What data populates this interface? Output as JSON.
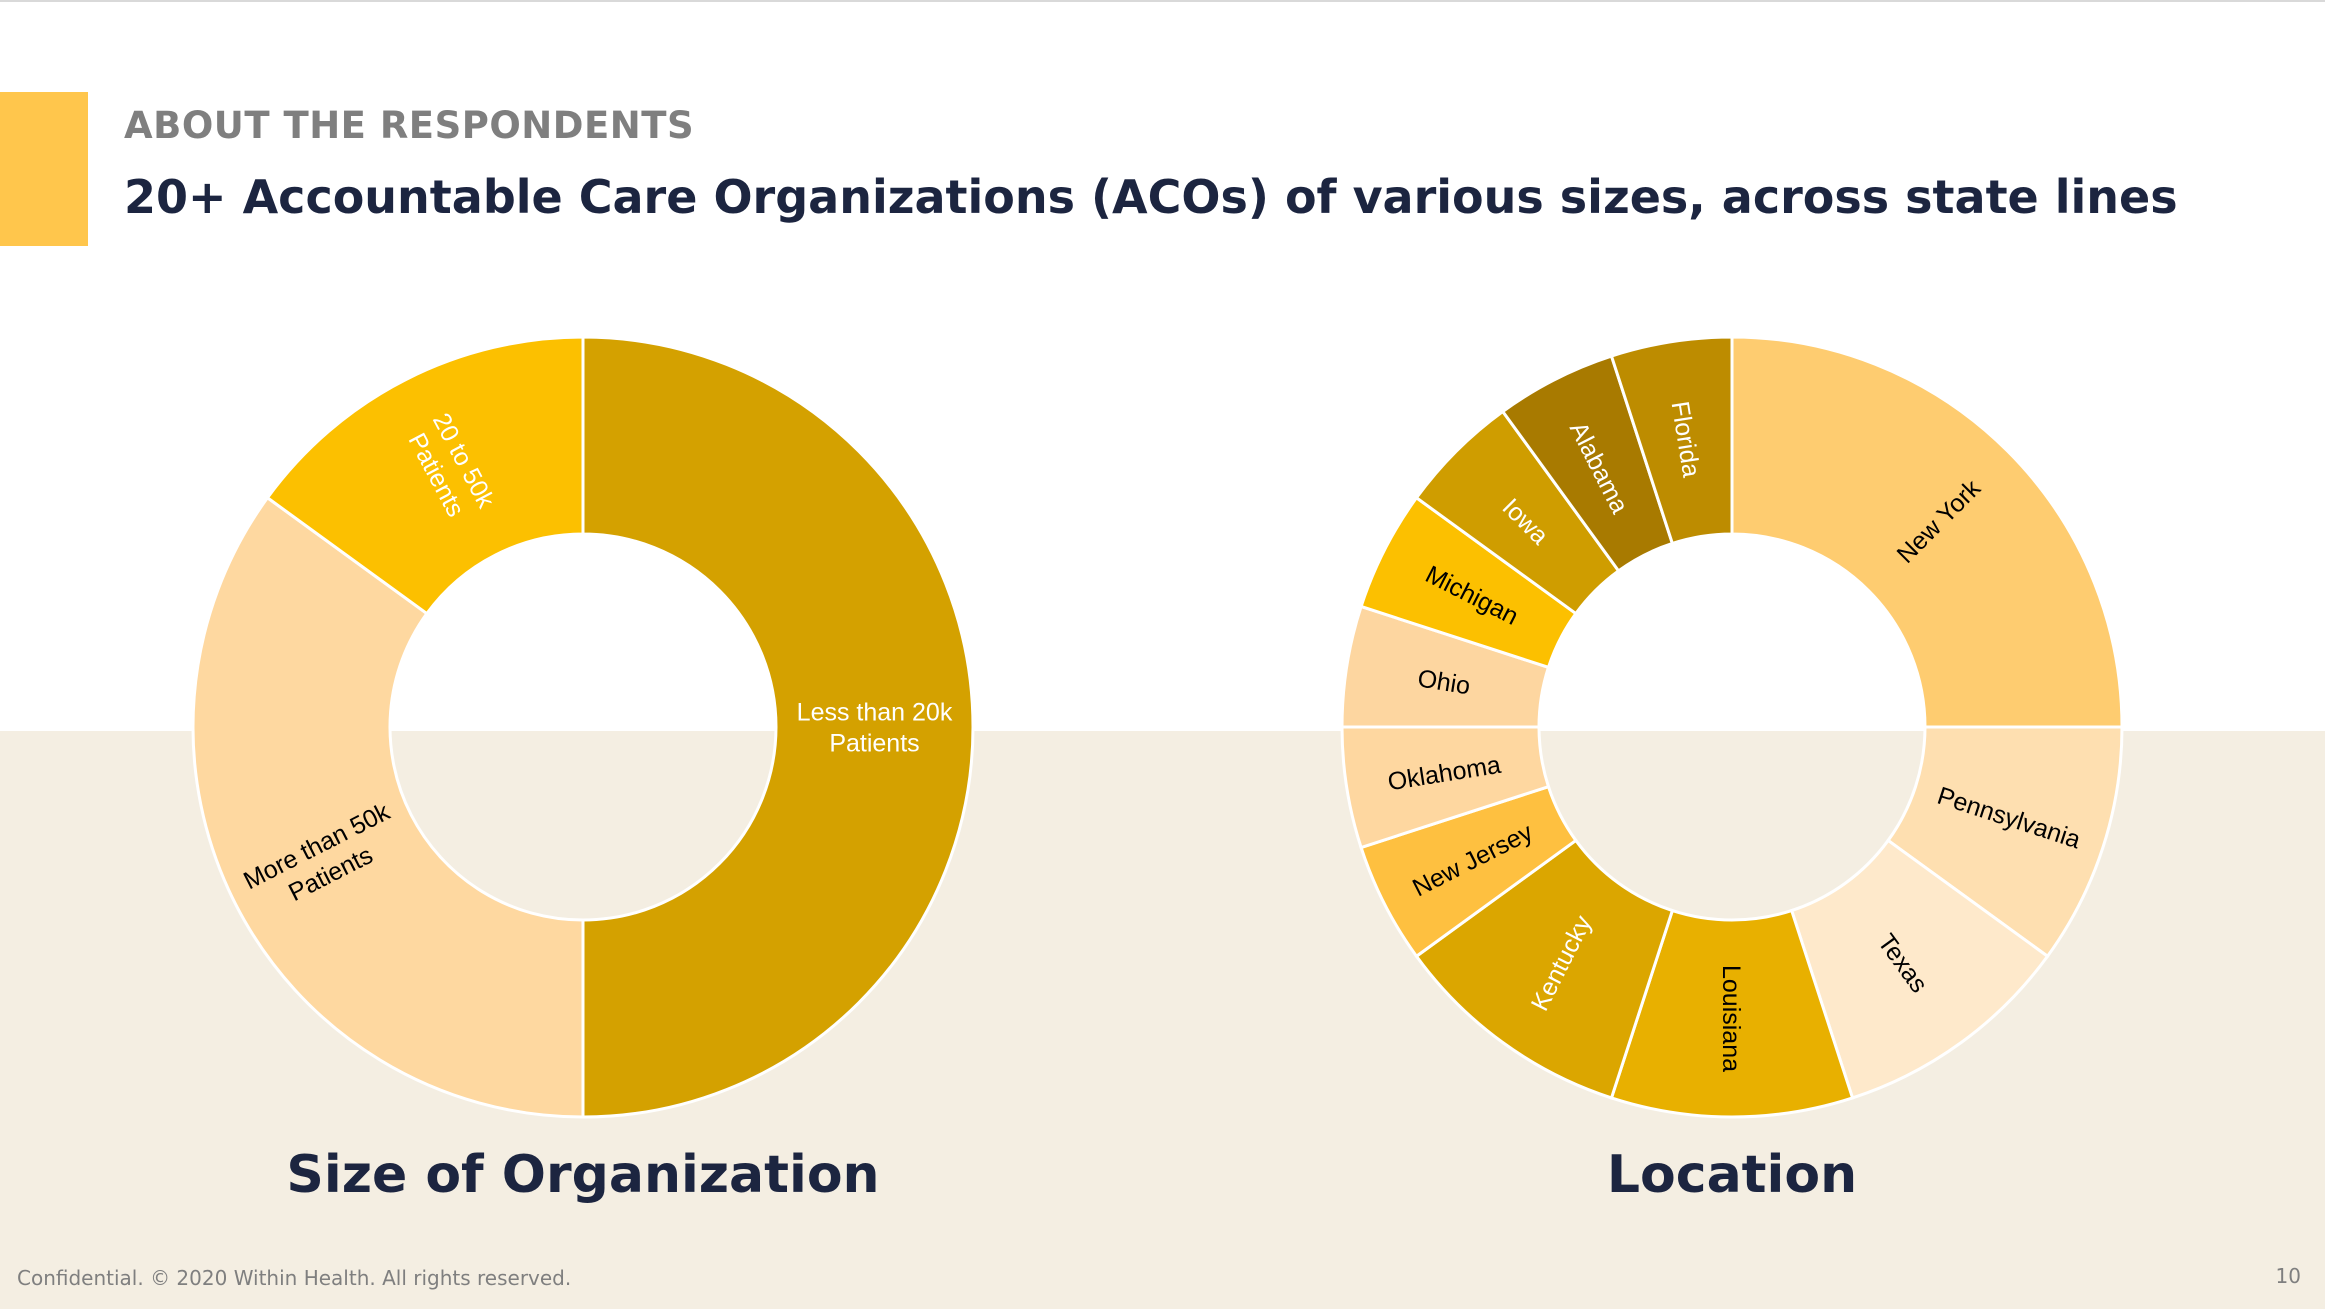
{
  "slide": {
    "eyebrow": "ABOUT THE RESPONDENTS",
    "headline": "20+ Accountable Care Organizations (ACOs) of various sizes, across state lines",
    "footer": "Confidential. © 2020 Within Health. All rights reserved.",
    "page_number": "10"
  },
  "colors": {
    "accent": "#ffc64c",
    "band": "#f4eee2",
    "title_text": "#1c2540",
    "muted_text": "#7f7f7f"
  },
  "chart_data": [
    {
      "type": "pie",
      "variant": "donut",
      "title": "Size of Organization",
      "slices": [
        {
          "label": "Less than 20k Patients",
          "lines": [
            "Less than 20k",
            "Patients"
          ],
          "value": 50,
          "color": "#d4a100",
          "text_color": "#ffffff"
        },
        {
          "label": "More than 50k Patients",
          "lines": [
            "More than 50k",
            "Patients"
          ],
          "value": 35,
          "color": "#fed8a0",
          "text_color": "#000000"
        },
        {
          "label": "20 to 50k Patients",
          "lines": [
            "20 to 50k",
            "Patients"
          ],
          "value": 15,
          "color": "#fcc000",
          "text_color": "#ffffff"
        }
      ]
    },
    {
      "type": "pie",
      "variant": "donut",
      "title": "Location",
      "slices": [
        {
          "label": "New York",
          "lines": [
            "New York"
          ],
          "value": 25,
          "color": "#fecc70",
          "text_color": "#000000"
        },
        {
          "label": "Pennsylvania",
          "lines": [
            "Pennsylvania"
          ],
          "value": 10,
          "color": "#fedfb0",
          "text_color": "#000000"
        },
        {
          "label": "Texas",
          "lines": [
            "Texas"
          ],
          "value": 10,
          "color": "#fee9cb",
          "text_color": "#000000"
        },
        {
          "label": "Louisiana",
          "lines": [
            "Louisiana"
          ],
          "value": 10,
          "color": "#e8b000",
          "text_color": "#000000"
        },
        {
          "label": "Kentucky",
          "lines": [
            "Kentucky"
          ],
          "value": 10,
          "color": "#dba600",
          "text_color": "#ffffff"
        },
        {
          "label": "New Jersey",
          "lines": [
            "New Jersey"
          ],
          "value": 5,
          "color": "#fec040",
          "text_color": "#000000"
        },
        {
          "label": "Oklahoma",
          "lines": [
            "Oklahoma"
          ],
          "value": 5,
          "color": "#fed7a0",
          "text_color": "#000000"
        },
        {
          "label": "Ohio",
          "lines": [
            "Ohio"
          ],
          "value": 5,
          "color": "#fdd6a0",
          "text_color": "#000000"
        },
        {
          "label": "Michigan",
          "lines": [
            "Michigan"
          ],
          "value": 5,
          "color": "#fcc000",
          "text_color": "#000000"
        },
        {
          "label": "Iowa",
          "lines": [
            "Iowa"
          ],
          "value": 5,
          "color": "#cf9d00",
          "text_color": "#ffffff"
        },
        {
          "label": "Alabama",
          "lines": [
            "Alabama"
          ],
          "value": 5,
          "color": "#a87a00",
          "text_color": "#ffffff"
        },
        {
          "label": "Florida",
          "lines": [
            "Florida"
          ],
          "value": 5,
          "color": "#bd8c00",
          "text_color": "#ffffff"
        }
      ]
    }
  ]
}
